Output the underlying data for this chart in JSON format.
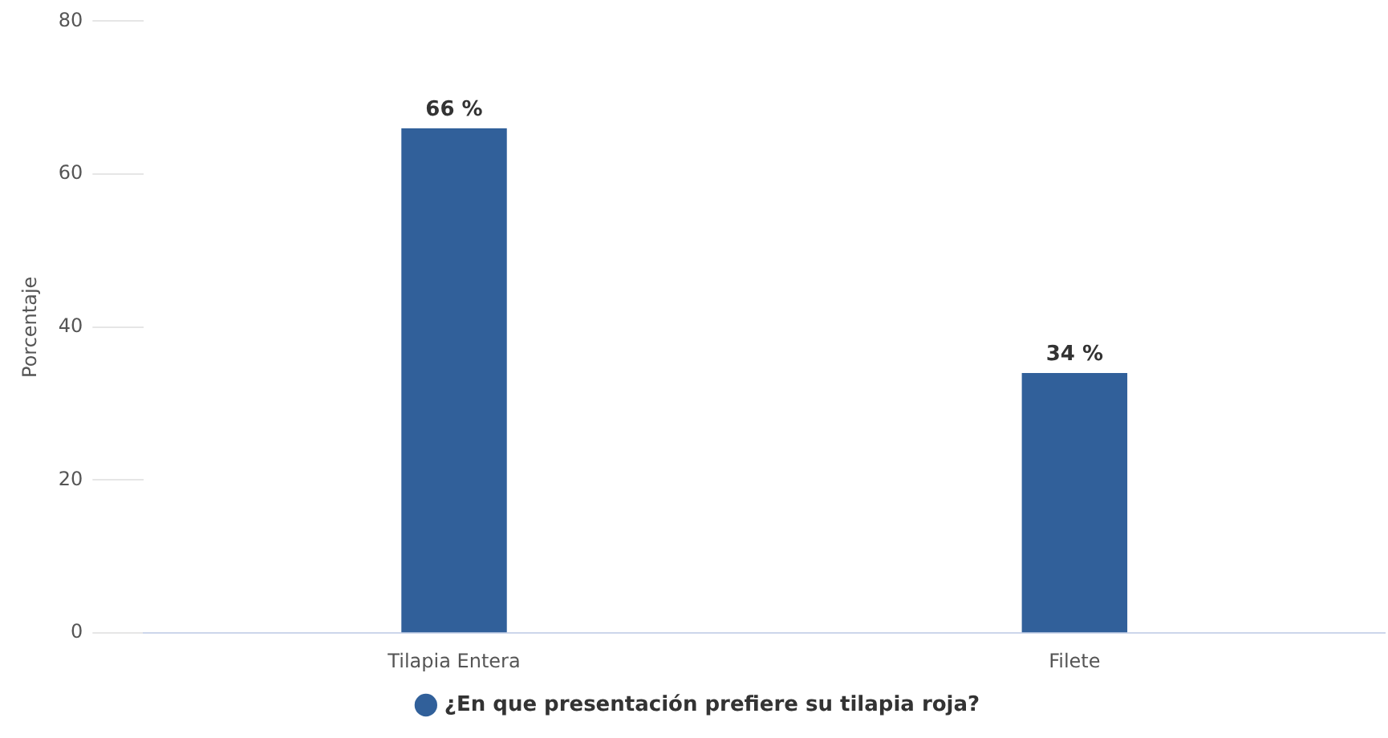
{
  "chart_data": {
    "type": "bar",
    "ylabel": "Porcentaje",
    "categories": [
      "Tilapia Entera",
      "Filete"
    ],
    "series": [
      {
        "name": "¿En que presentación prefiere su tilapia roja?",
        "color": "#31609a",
        "values": [
          66,
          34
        ],
        "value_labels": [
          "66 %",
          "34 %"
        ]
      }
    ],
    "ylim": [
      0,
      80
    ],
    "yticks": [
      0,
      20,
      40,
      60,
      80
    ],
    "legend": "bottom"
  }
}
